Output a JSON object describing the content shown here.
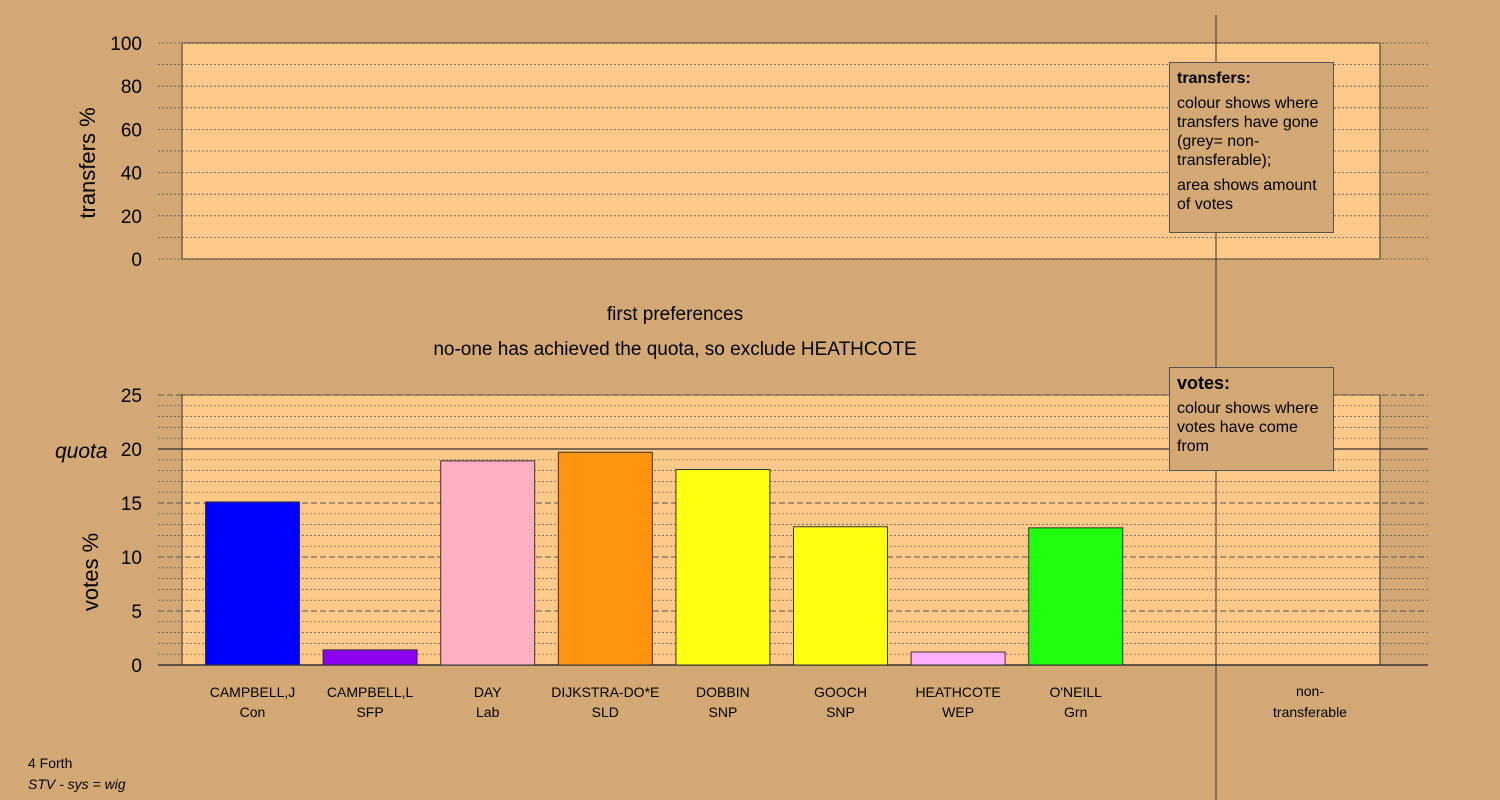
{
  "chart_data": {
    "type": "bar",
    "footer": {
      "line1": "4 Forth",
      "line2": "STV - sys = wig"
    },
    "transfers_panel": {
      "ylabel": "transfers %",
      "ylim": [
        0,
        100
      ],
      "yticks": [
        "0",
        "20",
        "40",
        "60",
        "80",
        "100"
      ],
      "legend": {
        "title": "transfers:",
        "line1": "colour shows where transfers have gone (grey= non-transferable);",
        "line2": "area shows amount of votes"
      }
    },
    "stage_title": "first preferences",
    "stage_note": "no-one has achieved the quota, so exclude HEATHCOTE",
    "votes_panel": {
      "ylabel": "votes %",
      "ylim": [
        0,
        25
      ],
      "yticks": [
        "0",
        "5",
        "10",
        "15",
        "20",
        "25"
      ],
      "quota_label": "quota",
      "quota_value": 20,
      "legend": {
        "title": "votes:",
        "line1": "colour shows where votes have come from"
      }
    },
    "candidates": [
      {
        "name": "CAMPBELL,J",
        "party": "Con",
        "value": 15.1,
        "color": "#0000ff"
      },
      {
        "name": "CAMPBELL,L",
        "party": "SFP",
        "value": 1.4,
        "color": "#8b00ee"
      },
      {
        "name": "DAY",
        "party": "Lab",
        "value": 18.9,
        "color": "#ffb0c0"
      },
      {
        "name": "DIJKSTRA-DO*E",
        "party": "SLD",
        "value": 19.7,
        "color": "#ff9410"
      },
      {
        "name": "DOBBIN",
        "party": "SNP",
        "value": 18.1,
        "color": "#ffff10"
      },
      {
        "name": "GOOCH",
        "party": "SNP",
        "value": 12.8,
        "color": "#ffff10"
      },
      {
        "name": "HEATHCOTE",
        "party": "WEP",
        "value": 1.2,
        "color": "#ffb0ff"
      },
      {
        "name": "O'NEILL",
        "party": "Grn",
        "value": 12.7,
        "color": "#20ff10"
      }
    ],
    "non_transferable": {
      "label1": "non-",
      "label2": "transferable"
    },
    "colors": {
      "background": "#d4a874",
      "plot_area": "#ffc98a"
    }
  }
}
